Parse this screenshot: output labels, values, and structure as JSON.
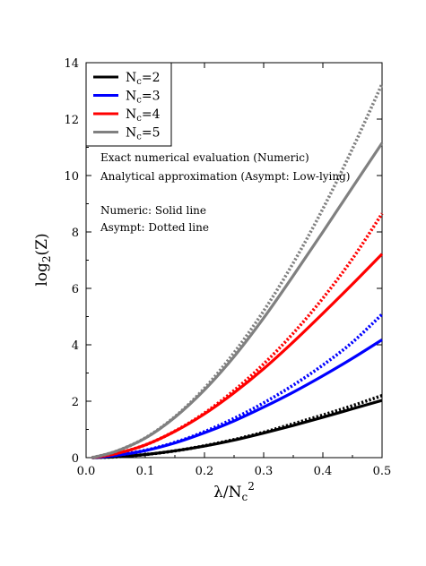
{
  "chart_data": {
    "type": "line",
    "xlabel": "λ/N_c^2",
    "ylabel": "log_2(Z)",
    "xlim": [
      0.0,
      0.5
    ],
    "ylim": [
      0,
      14
    ],
    "xticks": [
      0.0,
      0.1,
      0.2,
      0.3,
      0.4,
      0.5
    ],
    "xtick_labels": [
      "0.0",
      "0.1",
      "0.2",
      "0.3",
      "0.4",
      "0.5"
    ],
    "yticks": [
      0,
      2,
      4,
      6,
      8,
      10,
      12,
      14
    ],
    "ytick_labels": [
      "0",
      "2",
      "4",
      "6",
      "8",
      "10",
      "12",
      "14"
    ],
    "grid": false,
    "legend_position": "top-left",
    "legend": [
      {
        "base": "N",
        "sub": "c",
        "tail": "=2",
        "color": "#000000"
      },
      {
        "base": "N",
        "sub": "c",
        "tail": "=3",
        "color": "#0000ff"
      },
      {
        "base": "N",
        "sub": "c",
        "tail": "=4",
        "color": "#ff0000"
      },
      {
        "base": "N",
        "sub": "c",
        "tail": "=5",
        "color": "#808080"
      }
    ],
    "annotations": [
      "Exact numerical evaluation (Numeric)",
      "Analytical approximation (Asympt: Low-lying)",
      "Numeric: Solid line",
      "Asympt: Dotted line"
    ],
    "x": [
      0.01,
      0.05,
      0.1,
      0.15,
      0.2,
      0.25,
      0.3,
      0.35,
      0.4,
      0.45,
      0.5
    ],
    "series": [
      {
        "nc": 2,
        "style": "solid",
        "color": "#000000",
        "values": [
          0.0,
          0.03,
          0.11,
          0.24,
          0.41,
          0.62,
          0.87,
          1.14,
          1.43,
          1.73,
          2.03
        ]
      },
      {
        "nc": 2,
        "style": "dotted",
        "color": "#000000",
        "values": [
          0.0,
          0.03,
          0.11,
          0.24,
          0.42,
          0.64,
          0.9,
          1.2,
          1.51,
          1.84,
          2.2
        ]
      },
      {
        "nc": 3,
        "style": "solid",
        "color": "#0000ff",
        "values": [
          0.0,
          0.08,
          0.25,
          0.52,
          0.88,
          1.3,
          1.79,
          2.32,
          2.9,
          3.52,
          4.18
        ]
      },
      {
        "nc": 3,
        "style": "dotted",
        "color": "#0000ff",
        "values": [
          0.0,
          0.08,
          0.26,
          0.54,
          0.92,
          1.39,
          1.94,
          2.57,
          3.28,
          4.09,
          5.08
        ]
      },
      {
        "nc": 4,
        "style": "solid",
        "color": "#ff0000",
        "values": [
          0.0,
          0.14,
          0.45,
          0.93,
          1.55,
          2.3,
          3.15,
          4.1,
          5.11,
          6.15,
          7.22
        ]
      },
      {
        "nc": 4,
        "style": "dotted",
        "color": "#ff0000",
        "values": [
          0.0,
          0.14,
          0.45,
          0.94,
          1.58,
          2.38,
          3.32,
          4.41,
          5.65,
          7.05,
          8.65
        ]
      },
      {
        "nc": 5,
        "style": "solid",
        "color": "#808080",
        "values": [
          0.0,
          0.22,
          0.69,
          1.43,
          2.4,
          3.58,
          4.95,
          6.45,
          8.0,
          9.58,
          11.15
        ]
      },
      {
        "nc": 5,
        "style": "dotted",
        "color": "#808080",
        "values": [
          0.0,
          0.22,
          0.7,
          1.45,
          2.46,
          3.72,
          5.2,
          6.9,
          8.82,
          10.95,
          13.25
        ]
      }
    ]
  }
}
